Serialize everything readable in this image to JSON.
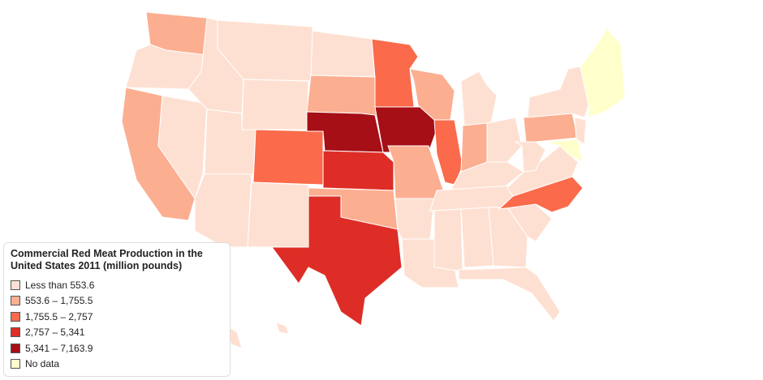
{
  "legend": {
    "title": "Commercial Red Meat Production in the United States 2011 (million pounds)",
    "items": [
      {
        "label": "Less than 553.6",
        "color": "#fee0d2"
      },
      {
        "label": "553.6 – 1,755.5",
        "color": "#fcae91"
      },
      {
        "label": "1,755.5 – 2,757",
        "color": "#fb6a4a"
      },
      {
        "label": "2,757 – 5,341",
        "color": "#de2d26"
      },
      {
        "label": "5,341 – 7,163.9",
        "color": "#a50f15"
      },
      {
        "label": "No data",
        "color": "#ffffcc"
      }
    ]
  }
}
